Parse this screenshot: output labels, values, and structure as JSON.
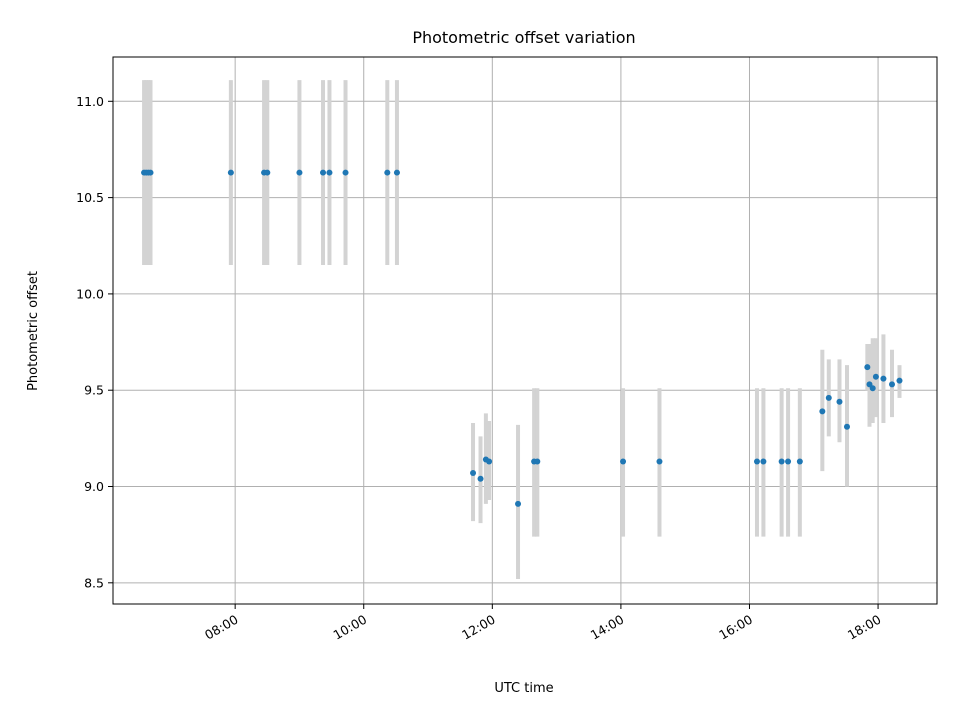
{
  "chart_data": {
    "type": "scatter",
    "title": "Photometric offset variation",
    "xlabel": "UTC time",
    "ylabel": "Photometric offset",
    "xlim": [
      "06:06",
      "18:55"
    ],
    "ylim": [
      8.39,
      11.23
    ],
    "x_ticks": [
      "08:00",
      "10:00",
      "12:00",
      "14:00",
      "16:00",
      "18:00"
    ],
    "y_ticks": [
      8.5,
      9.0,
      9.5,
      10.0,
      10.5,
      11.0
    ],
    "grid": true,
    "colors": {
      "point": "#1f77b4",
      "errorbar": "#d3d3d3",
      "grid": "#b0b0b0"
    },
    "points": [
      {
        "x": "06:35",
        "y": 10.63,
        "lo": 10.15,
        "hi": 11.11
      },
      {
        "x": "06:37",
        "y": 10.63,
        "lo": 10.15,
        "hi": 11.11
      },
      {
        "x": "06:39",
        "y": 10.63,
        "lo": 10.15,
        "hi": 11.11
      },
      {
        "x": "06:41",
        "y": 10.63,
        "lo": 10.15,
        "hi": 11.11
      },
      {
        "x": "07:56",
        "y": 10.63,
        "lo": 10.15,
        "hi": 11.11
      },
      {
        "x": "08:27",
        "y": 10.63,
        "lo": 10.15,
        "hi": 11.11
      },
      {
        "x": "08:30",
        "y": 10.63,
        "lo": 10.15,
        "hi": 11.11
      },
      {
        "x": "09:00",
        "y": 10.63,
        "lo": 10.15,
        "hi": 11.11
      },
      {
        "x": "09:22",
        "y": 10.63,
        "lo": 10.15,
        "hi": 11.11
      },
      {
        "x": "09:28",
        "y": 10.63,
        "lo": 10.15,
        "hi": 11.11
      },
      {
        "x": "09:43",
        "y": 10.63,
        "lo": 10.15,
        "hi": 11.11
      },
      {
        "x": "10:22",
        "y": 10.63,
        "lo": 10.15,
        "hi": 11.11
      },
      {
        "x": "10:31",
        "y": 10.63,
        "lo": 10.15,
        "hi": 11.11
      },
      {
        "x": "11:42",
        "y": 9.07,
        "lo": 8.82,
        "hi": 9.33
      },
      {
        "x": "11:49",
        "y": 9.04,
        "lo": 8.81,
        "hi": 9.26
      },
      {
        "x": "11:54",
        "y": 9.14,
        "lo": 8.91,
        "hi": 9.38
      },
      {
        "x": "11:57",
        "y": 9.13,
        "lo": 8.93,
        "hi": 9.34
      },
      {
        "x": "12:24",
        "y": 8.91,
        "lo": 8.52,
        "hi": 9.32
      },
      {
        "x": "12:39",
        "y": 9.13,
        "lo": 8.74,
        "hi": 9.51
      },
      {
        "x": "12:42",
        "y": 9.13,
        "lo": 8.74,
        "hi": 9.51
      },
      {
        "x": "14:02",
        "y": 9.13,
        "lo": 8.74,
        "hi": 9.51
      },
      {
        "x": "14:36",
        "y": 9.13,
        "lo": 8.74,
        "hi": 9.51
      },
      {
        "x": "16:07",
        "y": 9.13,
        "lo": 8.74,
        "hi": 9.51
      },
      {
        "x": "16:13",
        "y": 9.13,
        "lo": 8.74,
        "hi": 9.51
      },
      {
        "x": "16:30",
        "y": 9.13,
        "lo": 8.74,
        "hi": 9.51
      },
      {
        "x": "16:36",
        "y": 9.13,
        "lo": 8.74,
        "hi": 9.51
      },
      {
        "x": "16:47",
        "y": 9.13,
        "lo": 8.74,
        "hi": 9.51
      },
      {
        "x": "17:08",
        "y": 9.39,
        "lo": 9.08,
        "hi": 9.71
      },
      {
        "x": "17:14",
        "y": 9.46,
        "lo": 9.26,
        "hi": 9.66
      },
      {
        "x": "17:24",
        "y": 9.44,
        "lo": 9.23,
        "hi": 9.66
      },
      {
        "x": "17:31",
        "y": 9.31,
        "lo": 9.0,
        "hi": 9.63
      },
      {
        "x": "17:50",
        "y": 9.62,
        "lo": 9.5,
        "hi": 9.74
      },
      {
        "x": "17:52",
        "y": 9.53,
        "lo": 9.31,
        "hi": 9.74
      },
      {
        "x": "17:55",
        "y": 9.51,
        "lo": 9.33,
        "hi": 9.77
      },
      {
        "x": "17:58",
        "y": 9.57,
        "lo": 9.36,
        "hi": 9.77
      },
      {
        "x": "18:05",
        "y": 9.56,
        "lo": 9.33,
        "hi": 9.79
      },
      {
        "x": "18:13",
        "y": 9.53,
        "lo": 9.36,
        "hi": 9.71
      },
      {
        "x": "18:20",
        "y": 9.55,
        "lo": 9.46,
        "hi": 9.63
      }
    ]
  }
}
